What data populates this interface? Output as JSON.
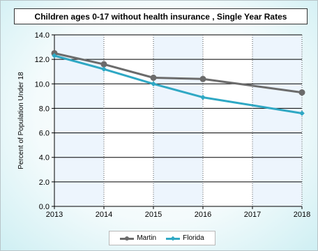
{
  "chart_data": {
    "type": "line",
    "title": "Children ages 0-17 without health insurance , Single Year Rates",
    "xlabel": "",
    "ylabel": "Percent of Population Under 18",
    "x": [
      2013,
      2014,
      2015,
      2016,
      2017,
      2018
    ],
    "x_tick_labels": [
      "2013",
      "2014",
      "2015",
      "2016",
      "2017",
      "2018"
    ],
    "ylim": [
      0,
      14
    ],
    "y_ticks": [
      0,
      2,
      4,
      6,
      8,
      10,
      12,
      14
    ],
    "y_tick_labels": [
      "0.0",
      "2.0",
      "4.0",
      "6.0",
      "8.0",
      "10.0",
      "12.0",
      "14.0"
    ],
    "grid": true,
    "legend_position": "bottom",
    "series": [
      {
        "name": "Martin",
        "color": "#6b6b6b",
        "marker": "circle",
        "points": [
          [
            2013,
            12.5
          ],
          [
            2014,
            11.6
          ],
          [
            2015,
            10.5
          ],
          [
            2016,
            10.4
          ],
          [
            2018,
            9.3
          ]
        ]
      },
      {
        "name": "Florida",
        "color": "#2fa8c4",
        "marker": "diamond",
        "points": [
          [
            2013,
            12.3
          ],
          [
            2014,
            11.2
          ],
          [
            2015,
            10.0
          ],
          [
            2016,
            8.9
          ],
          [
            2018,
            7.6
          ]
        ]
      }
    ]
  }
}
